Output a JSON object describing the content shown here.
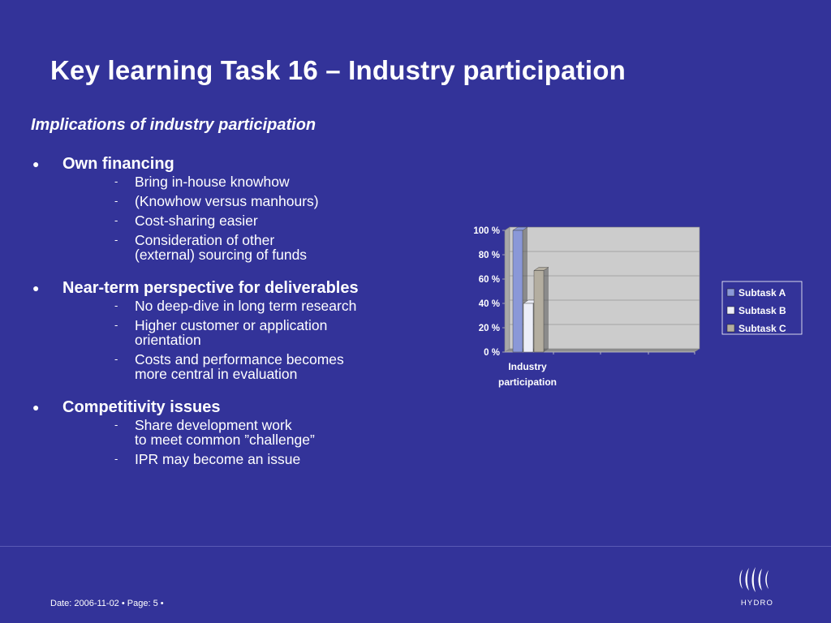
{
  "slide": {
    "title": "Key learning Task 16 – Industry participation",
    "subtitle": "Implications of industry participation",
    "bullets": [
      {
        "heading": "Own financing",
        "items": [
          [
            "Bring in-house knowhow"
          ],
          [
            "(Knowhow versus manhours)"
          ],
          [
            "Cost-sharing easier"
          ],
          [
            "Consideration of other",
            "(external) sourcing of funds"
          ]
        ]
      },
      {
        "heading": "Near-term perspective for deliverables",
        "items": [
          [
            "No deep-dive in long term research"
          ],
          [
            "Higher customer or application",
            "orientation"
          ],
          [
            "Costs and performance becomes",
            "more central in evaluation"
          ]
        ]
      },
      {
        "heading": "Competitivity issues",
        "items": [
          [
            "Share development work",
            "to meet common ”challenge”"
          ],
          [
            "IPR may become an issue"
          ]
        ]
      }
    ],
    "bullet_symbol": "●",
    "dash_symbol": "-"
  },
  "footer": {
    "text": "Date: 2006-11-02 • Page: 5 •"
  },
  "logo": {
    "icon": "hydro-logo-icon",
    "text": "HYDRO"
  },
  "colors": {
    "background": "#333399",
    "plot_area": "#cccccc",
    "subtask_a": "#8a98d8",
    "subtask_b": "#eceef8",
    "subtask_c": "#b4aea0"
  },
  "chart_data": {
    "type": "bar",
    "style": "3d",
    "categories": [
      "Industry participation"
    ],
    "category_lines": [
      "Industry",
      "participation"
    ],
    "series": [
      {
        "name": "Subtask A",
        "values": [
          100
        ]
      },
      {
        "name": "Subtask B",
        "values": [
          40
        ]
      },
      {
        "name": "Subtask C",
        "values": [
          67
        ]
      }
    ],
    "ylim": [
      0,
      100
    ],
    "yticks": [
      0,
      20,
      40,
      60,
      80,
      100
    ],
    "ytick_labels": [
      "0 %",
      "20 %",
      "40 %",
      "60 %",
      "80 %",
      "100 %"
    ],
    "grid": true,
    "legend_position": "right",
    "title": "",
    "xlabel": "",
    "ylabel": ""
  }
}
